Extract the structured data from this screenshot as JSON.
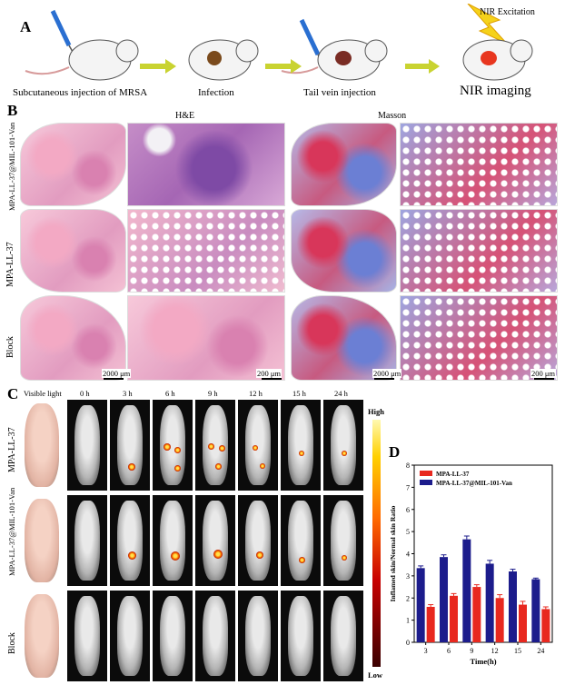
{
  "panel_a": {
    "label": "A",
    "steps": [
      "Subcutaneous injection of MRSA",
      "Infection",
      "Tail vein injection",
      "NIR imaging"
    ],
    "nir_label": "NIR Excitation"
  },
  "panel_b": {
    "label": "B",
    "stain_he": "H&E",
    "stain_masson": "Masson",
    "rows": [
      "MPA-LL-37@MIL-101-Van",
      "MPA-LL-37",
      "Block"
    ],
    "scale_large": "2000 μm",
    "scale_small": "200 μm"
  },
  "panel_c": {
    "label": "C",
    "visible_light": "Visible light",
    "times": [
      "0 h",
      "3 h",
      "6 h",
      "9 h",
      "12 h",
      "15 h",
      "24 h"
    ],
    "rows": [
      "MPA-LL-37",
      "MPA-LL-37@MIL-101-Van",
      "Block"
    ],
    "colorbar_high": "High",
    "colorbar_low": "Low"
  },
  "chart_data": {
    "label": "D",
    "type": "bar",
    "categories": [
      "3",
      "6",
      "9",
      "12",
      "15",
      "24"
    ],
    "series": [
      {
        "name": "MPA-LL-37",
        "color": "#e8281f",
        "values": [
          1.6,
          2.1,
          2.5,
          2.0,
          1.7,
          1.5
        ],
        "errors": [
          0.1,
          0.1,
          0.1,
          0.15,
          0.15,
          0.1
        ]
      },
      {
        "name": "MPA-LL-37@MIL-101-Van",
        "color": "#1c1c8c",
        "values": [
          3.35,
          3.85,
          4.65,
          3.55,
          3.2,
          2.85
        ],
        "errors": [
          0.1,
          0.1,
          0.15,
          0.15,
          0.1,
          0.05
        ]
      }
    ],
    "xlabel": "Time(h)",
    "ylabel": "Inflamed skin/Normal skin Ratio",
    "ylim": [
      0,
      8
    ],
    "yticks": [
      "0",
      "1",
      "2",
      "3",
      "4",
      "5",
      "6",
      "7",
      "8"
    ],
    "legend": "top-left"
  }
}
